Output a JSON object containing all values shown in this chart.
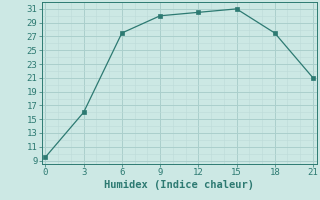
{
  "x": [
    0,
    3,
    6,
    9,
    12,
    15,
    18,
    21
  ],
  "y": [
    9.5,
    16.0,
    27.5,
    30.0,
    30.5,
    31.0,
    27.5,
    21.0
  ],
  "line_color": "#2d7a72",
  "marker_color": "#2d7a72",
  "bg_color": "#cce8e4",
  "grid_color_major": "#aacfcc",
  "grid_color_minor": "#bddbd8",
  "xlabel": "Humidex (Indice chaleur)",
  "xlabel_fontsize": 7.5,
  "xlim": [
    0,
    21
  ],
  "ylim": [
    8.5,
    32
  ],
  "xticks": [
    0,
    3,
    6,
    9,
    12,
    15,
    18,
    21
  ],
  "yticks": [
    9,
    11,
    13,
    15,
    17,
    19,
    21,
    23,
    25,
    27,
    29,
    31
  ],
  "tick_fontsize": 6.5
}
